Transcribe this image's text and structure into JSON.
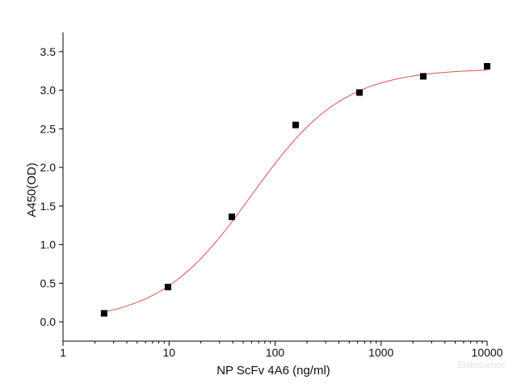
{
  "chart_data": {
    "type": "scatter",
    "xlabel": "NP ScFv 4A6 (ng/ml)",
    "ylabel": "A450(OD)",
    "x_scale": "log",
    "xlim": [
      1,
      10000
    ],
    "ylim": [
      -0.25,
      3.75
    ],
    "x_ticks": [
      1,
      10,
      100,
      1000,
      10000
    ],
    "x_tick_labels": [
      "1",
      "10",
      "100",
      "1000",
      "10000"
    ],
    "y_ticks": [
      0.0,
      0.5,
      1.0,
      1.5,
      2.0,
      2.5,
      3.0,
      3.5
    ],
    "y_tick_labels": [
      "0.0",
      "0.5",
      "1.0",
      "1.5",
      "2.0",
      "2.5",
      "3.0",
      "3.5"
    ],
    "grid": false,
    "series": [
      {
        "marker": "square",
        "color": "#000000",
        "x": [
          2.44,
          9.77,
          39.1,
          156.3,
          625,
          2500,
          10000
        ],
        "y": [
          0.11,
          0.45,
          1.36,
          2.55,
          2.97,
          3.18,
          3.31
        ]
      }
    ],
    "fit_curve": {
      "type": "4PL",
      "color": "#e05050",
      "bottom": 0.0,
      "top": 3.28,
      "ec50": 60,
      "hill": 1.0
    }
  },
  "watermark": "Elabscience"
}
